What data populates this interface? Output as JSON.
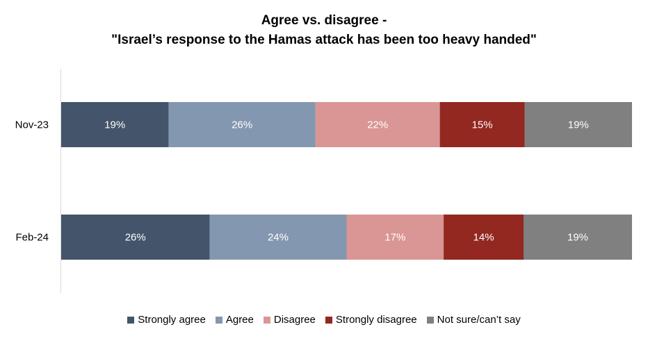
{
  "chart_data": {
    "type": "bar",
    "orientation": "horizontal",
    "stacked": true,
    "title_lines": [
      "Agree vs. disagree -",
      "\"Israel’s response to the Hamas attack has been too heavy handed\""
    ],
    "categories": [
      "Nov-23",
      "Feb-24"
    ],
    "series": [
      {
        "name": "Strongly agree",
        "values": [
          19,
          26
        ],
        "color": "#44546a"
      },
      {
        "name": "Agree",
        "values": [
          26,
          24
        ],
        "color": "#8497b0"
      },
      {
        "name": "Disagree",
        "values": [
          22,
          17
        ],
        "color": "#d99694"
      },
      {
        "name": "Strongly disagree",
        "values": [
          15,
          14
        ],
        "color": "#922820"
      },
      {
        "name": "Not sure/can’t say",
        "values": [
          19,
          19
        ],
        "color": "#808080"
      }
    ],
    "data_labels": [
      [
        "19%",
        "26%",
        "22%",
        "15%",
        "19%"
      ],
      [
        "26%",
        "24%",
        "17%",
        "14%",
        "19%"
      ]
    ],
    "legend_position": "bottom",
    "grid": false
  }
}
